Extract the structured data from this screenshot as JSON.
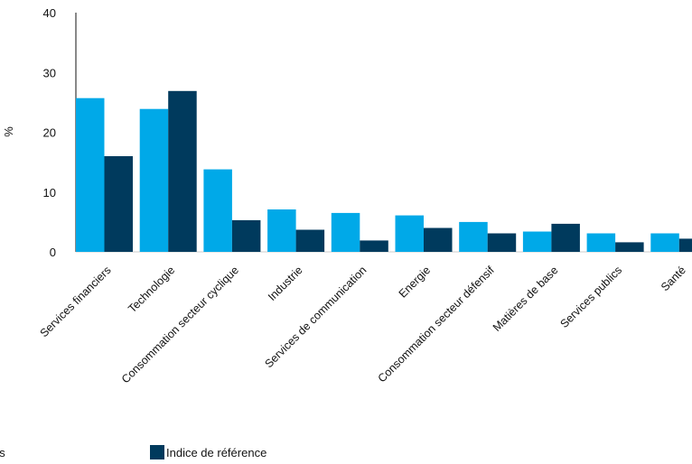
{
  "chart_data": {
    "type": "bar",
    "title": "",
    "xlabel": "",
    "ylabel": "%",
    "ylim": [
      0,
      40
    ],
    "yticks": [
      0,
      10,
      20,
      30,
      40
    ],
    "grid": false,
    "categories": [
      "Services financiers",
      "Technologie",
      "Consommation secteur cyclique",
      "Industrie",
      "Services de communication",
      "Energie",
      "Consommation secteur défensif",
      "Matières de base",
      "Services publics",
      "Santé"
    ],
    "series": [
      {
        "name": "ds",
        "color": "#00a9e8",
        "values": [
          25.7,
          23.9,
          13.8,
          7.1,
          6.5,
          6.1,
          5.0,
          3.4,
          3.1,
          3.1
        ]
      },
      {
        "name": "Indice de référence",
        "color": "#003a5d",
        "values": [
          16.0,
          26.9,
          5.3,
          3.7,
          1.9,
          4.0,
          3.1,
          4.7,
          1.6,
          2.2
        ]
      }
    ],
    "legend_position": "bottom"
  }
}
